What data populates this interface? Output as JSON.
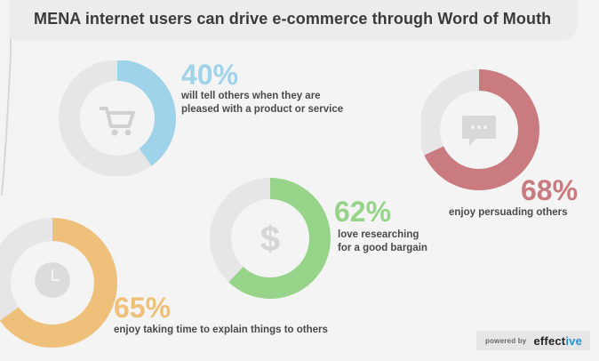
{
  "title": "MENA internet users can drive e-commerce through Word of Mouth",
  "stats": [
    {
      "value": "40%",
      "percent": 40,
      "label_line1": "will tell others when they are",
      "label_line2": "pleased with a product or service",
      "color": "#9fd3ea",
      "icon": "shopping-cart-icon"
    },
    {
      "value": "68%",
      "percent": 68,
      "label_line1": "enjoy persuading others",
      "label_line2": "",
      "color": "#c97b7f",
      "icon": "chat-bubble-icon"
    },
    {
      "value": "62%",
      "percent": 62,
      "label_line1": "love researching",
      "label_line2": "for a good bargain",
      "color": "#96d48a",
      "icon": "dollar-icon"
    },
    {
      "value": "65%",
      "percent": 65,
      "label_line1": "enjoy taking time to explain things to others",
      "label_line2": "",
      "color": "#efc07a",
      "icon": "clock-icon"
    }
  ],
  "footer": {
    "powered_by": "powered by",
    "brand_main": "effect",
    "brand_accent": "ive"
  },
  "colors": {
    "track": "#e6e6e6",
    "background": "#f4f4f4"
  }
}
